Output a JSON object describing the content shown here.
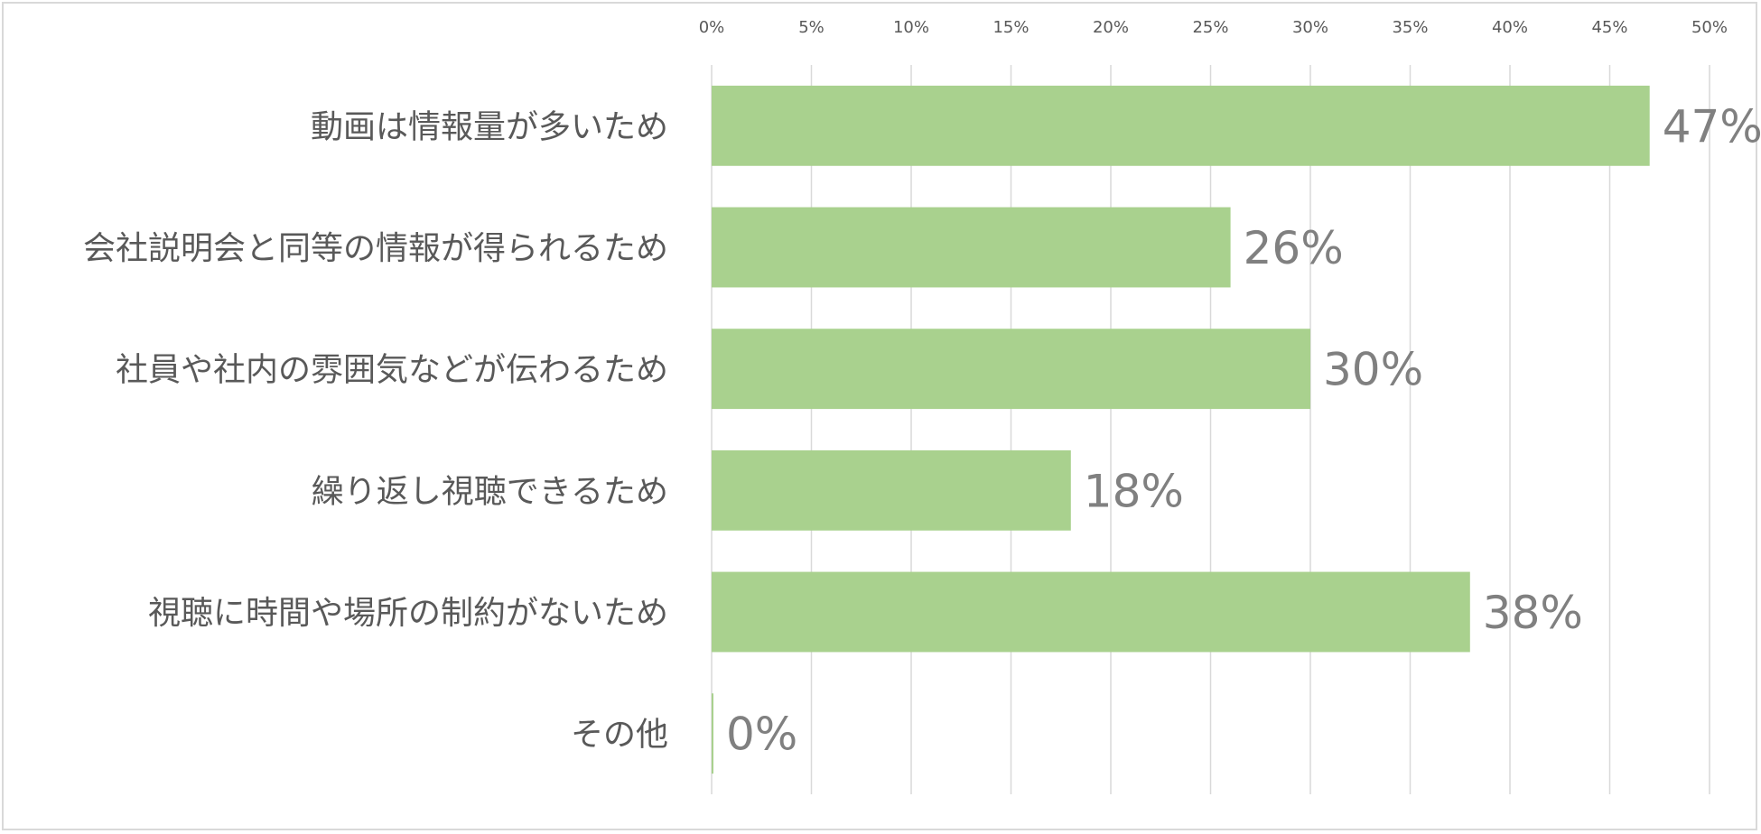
{
  "chart_data": {
    "type": "bar",
    "orientation": "horizontal",
    "title": "",
    "xlabel": "",
    "ylabel": "",
    "categories": [
      "動画は情報量が多いため",
      "会社説明会と同等の情報が得られるため",
      "社員や社内の雰囲気などが伝わるため",
      "繰り返し視聴できるため",
      "視聴に時間や場所の制約がないため",
      "その他"
    ],
    "values": [
      47,
      26,
      30,
      18,
      38,
      0
    ],
    "data_labels": [
      "47%",
      "26%",
      "30%",
      "18%",
      "38%",
      "0%"
    ],
    "xlim": [
      0,
      50
    ],
    "x_ticks": [
      0,
      5,
      10,
      15,
      20,
      25,
      30,
      35,
      40,
      45,
      50
    ],
    "x_tick_labels": [
      "0%",
      "5%",
      "10%",
      "15%",
      "20%",
      "25%",
      "30%",
      "35%",
      "40%",
      "45%",
      "50%"
    ],
    "x_axis_position": "top",
    "grid": true,
    "legend": "none",
    "colors": {
      "bar": "#a9d18e",
      "grid": "#d9d9d9",
      "border": "#d9d9d9",
      "tick_text": "#595959",
      "category_text": "#595959",
      "data_label_text": "#808080"
    }
  }
}
